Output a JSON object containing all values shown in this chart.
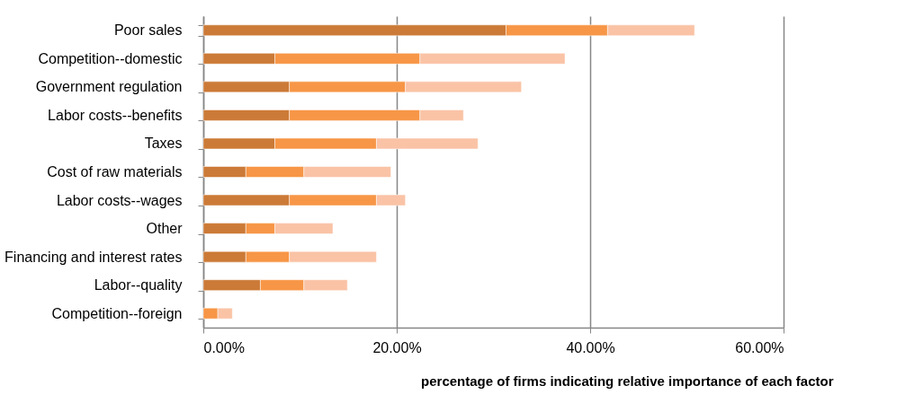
{
  "chart_data": {
    "type": "bar",
    "orientation": "horizontal",
    "stacked": true,
    "xlabel": "percentage of firms indicating relative importance of each factor",
    "categories": [
      "Poor sales",
      "Competition--domestic",
      "Government regulation",
      "Labor costs--benefits",
      "Taxes",
      "Cost of raw materials",
      "Labor costs--wages",
      "Other",
      "Financing and interest rates",
      "Labor--quality",
      "Competition--foreign"
    ],
    "series": [
      {
        "color": "#cc7a37",
        "values": [
          31.3,
          7.4,
          8.9,
          8.9,
          7.4,
          4.4,
          8.9,
          4.4,
          4.4,
          5.9,
          0
        ]
      },
      {
        "color": "#f79646",
        "values": [
          10.5,
          15.0,
          12.0,
          13.5,
          10.5,
          6.0,
          9.0,
          3.0,
          4.5,
          4.5,
          1.5
        ]
      },
      {
        "color": "#fac3a6",
        "values": [
          9.0,
          15.0,
          12.0,
          4.5,
          10.5,
          9.0,
          3.0,
          6.0,
          9.0,
          4.5,
          1.5
        ]
      }
    ],
    "xlim": [
      0,
      60
    ],
    "xticks": [
      {
        "value": 0,
        "label": "0.00%"
      },
      {
        "value": 20,
        "label": "20.00%"
      },
      {
        "value": 40,
        "label": "40.00%"
      },
      {
        "value": 60,
        "label": "60.00%"
      }
    ],
    "grid": "x",
    "legend": false
  }
}
